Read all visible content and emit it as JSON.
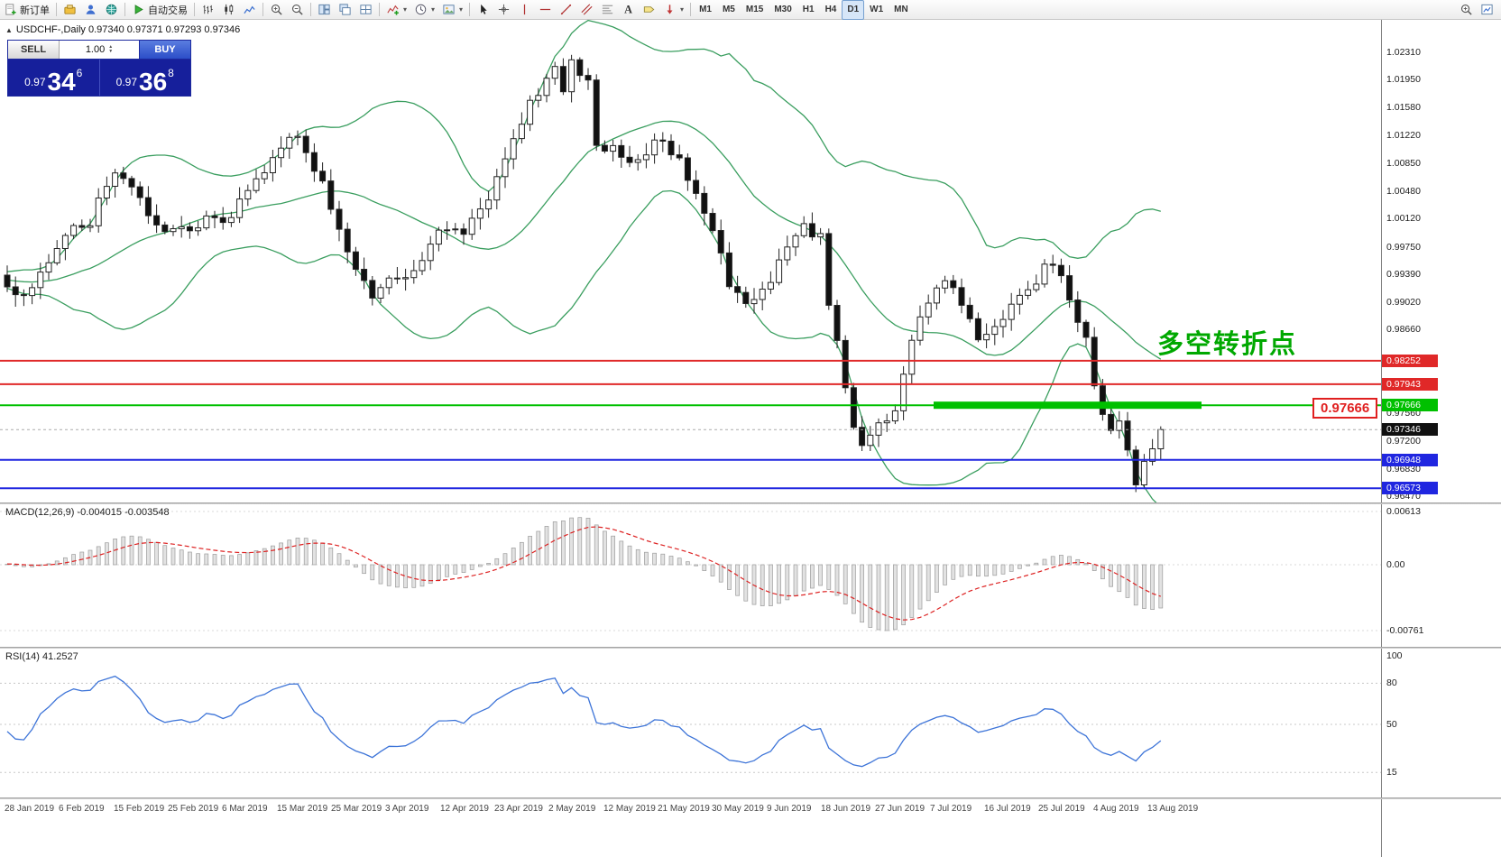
{
  "toolbar": {
    "groups": [
      {
        "items": [
          {
            "name": "new-order-button",
            "icon": "new-order-icon",
            "label": "新订单"
          }
        ]
      },
      {
        "items": [
          {
            "name": "symbols-button",
            "icon": "stack-icon"
          },
          {
            "name": "profile-button",
            "icon": "profile-icon"
          },
          {
            "name": "community-button",
            "icon": "globe-icon"
          }
        ]
      },
      {
        "items": [
          {
            "name": "auto-trading-button",
            "icon": "play-icon",
            "label": "自动交易"
          }
        ]
      },
      {
        "items": [
          {
            "name": "bar-chart-button",
            "icon": "bar-chart-icon"
          },
          {
            "name": "candlestick-chart-button",
            "icon": "candle-icon"
          },
          {
            "name": "line-chart-button",
            "icon": "line-chart-icon"
          }
        ]
      },
      {
        "items": [
          {
            "name": "zoom-in-button",
            "icon": "zoom-in-icon"
          },
          {
            "name": "zoom-out-button",
            "icon": "zoom-out-icon"
          }
        ]
      },
      {
        "items": [
          {
            "name": "tile-windows-button",
            "icon": "tile-windows-icon"
          },
          {
            "name": "cascade-windows-button",
            "icon": "cascade-windows-icon"
          },
          {
            "name": "arrange-windows-button",
            "icon": "grid-icon"
          }
        ]
      },
      {
        "items": [
          {
            "name": "indicators-button",
            "icon": "indicators-icon",
            "dropdown": true
          },
          {
            "name": "periods-button",
            "icon": "clock-icon",
            "dropdown": true
          },
          {
            "name": "templates-button",
            "icon": "template-icon",
            "dropdown": true
          }
        ]
      },
      {
        "items": [
          {
            "name": "cursor-button",
            "icon": "cursor-icon"
          },
          {
            "name": "crosshair-button",
            "icon": "crosshair-icon"
          },
          {
            "name": "vertical-line-button",
            "icon": "vline-icon"
          },
          {
            "name": "horizontal-line-button",
            "icon": "hline-icon"
          },
          {
            "name": "trendline-button",
            "icon": "trendline-icon"
          },
          {
            "name": "channel-button",
            "icon": "channel-icon"
          },
          {
            "name": "fibonacci-button",
            "icon": "fibo-icon"
          },
          {
            "name": "text-button",
            "icon": "text-icon"
          },
          {
            "name": "label-button",
            "icon": "label-icon"
          },
          {
            "name": "arrows-button",
            "icon": "arrow-icon",
            "dropdown": true
          }
        ]
      },
      {
        "items": [
          {
            "name": "timeframe-m1-button",
            "label": "M1",
            "tf": true
          },
          {
            "name": "timeframe-m5-button",
            "label": "M5",
            "tf": true
          },
          {
            "name": "timeframe-m15-button",
            "label": "M15",
            "tf": true
          },
          {
            "name": "timeframe-m30-button",
            "label": "M30",
            "tf": true
          },
          {
            "name": "timeframe-h1-button",
            "label": "H1",
            "tf": true
          },
          {
            "name": "timeframe-h4-button",
            "label": "H4",
            "tf": true
          },
          {
            "name": "timeframe-d1-button",
            "label": "D1",
            "tf": true,
            "active": true
          },
          {
            "name": "timeframe-w1-button",
            "label": "W1",
            "tf": true
          },
          {
            "name": "timeframe-mn-button",
            "label": "MN",
            "tf": true
          }
        ]
      }
    ],
    "right_items": [
      {
        "name": "search-button",
        "icon": "search-icon"
      },
      {
        "name": "new-chart-button",
        "icon": "new-chart-icon"
      }
    ]
  },
  "chart_header": {
    "symbol_line": "USDCHF-,Daily  0.97340 0.97371 0.97293 0.97346"
  },
  "trade_panel": {
    "sell_label": "SELL",
    "buy_label": "BUY",
    "volume": "1.00",
    "sell_price_main": "0.97",
    "sell_price_big": "34",
    "sell_price_sup": "6",
    "buy_price_main": "0.97",
    "buy_price_big": "36",
    "buy_price_sup": "8"
  },
  "annotation": {
    "text": "多空转折点",
    "color": "#00a800"
  },
  "price_tag": {
    "text": "0.97666"
  },
  "chart_data": {
    "type": "candlestick",
    "symbol": "USDCHF-",
    "timeframe": "Daily",
    "ohlc": {
      "open": 0.9734,
      "high": 0.97371,
      "low": 0.97293,
      "close": 0.97346
    },
    "current_price": 0.97346,
    "current_price_label": "0.97346",
    "price_range": {
      "top": 1.0231,
      "bottom": 0.9647
    },
    "y_axis_ticks": [
      "1.02310",
      "1.01950",
      "1.01580",
      "1.01220",
      "1.00850",
      "1.00480",
      "1.00120",
      "0.99750",
      "0.99390",
      "0.99020",
      "0.98660",
      "0.97560",
      "0.97200",
      "0.96830",
      "0.96470"
    ],
    "level_lines": [
      {
        "price": 0.98252,
        "label": "0.98252",
        "color": "#e02828"
      },
      {
        "price": 0.97943,
        "label": "0.97943",
        "color": "#e02828"
      },
      {
        "price": 0.97666,
        "label": "0.97666",
        "color": "#00c000",
        "highlight_segment": {
          "x_start_frac": 0.676,
          "x_end_frac": 0.87
        }
      },
      {
        "price": 0.96948,
        "label": "0.96948",
        "color": "#2026e0"
      },
      {
        "price": 0.96573,
        "label": "0.96573",
        "color": "#2026e0"
      }
    ],
    "x_axis_dates": [
      "28 Jan 2019",
      "6 Feb 2019",
      "15 Feb 2019",
      "25 Feb 2019",
      "6 Mar 2019",
      "15 Mar 2019",
      "25 Mar 2019",
      "3 Apr 2019",
      "12 Apr 2019",
      "23 Apr 2019",
      "2 May 2019",
      "12 May 2019",
      "21 May 2019",
      "30 May 2019",
      "9 Jun 2019",
      "18 Jun 2019",
      "27 Jun 2019",
      "7 Jul 2019",
      "16 Jul 2019",
      "25 Jul 2019",
      "4 Aug 2019",
      "13 Aug 2019"
    ],
    "candle_count": 140,
    "price_anchors": [
      [
        0,
        0.993
      ],
      [
        2,
        0.9908
      ],
      [
        5,
        0.996
      ],
      [
        8,
        1.0
      ],
      [
        10,
        1.001
      ],
      [
        13,
        1.0078
      ],
      [
        15,
        1.0052
      ],
      [
        18,
        1.0
      ],
      [
        21,
        0.9996
      ],
      [
        24,
        1.001
      ],
      [
        26,
        1.0004
      ],
      [
        29,
        1.0048
      ],
      [
        32,
        1.0095
      ],
      [
        34,
        1.0125
      ],
      [
        36,
        1.01
      ],
      [
        38,
        1.0058
      ],
      [
        40,
        0.9995
      ],
      [
        42,
        0.994
      ],
      [
        44,
        0.9912
      ],
      [
        46,
        0.9928
      ],
      [
        48,
        0.9935
      ],
      [
        50,
        0.9958
      ],
      [
        52,
        0.9998
      ],
      [
        55,
        0.9992
      ],
      [
        57,
        1.0022
      ],
      [
        59,
        1.006
      ],
      [
        61,
        1.011
      ],
      [
        63,
        1.016
      ],
      [
        65,
        1.0195
      ],
      [
        66,
        1.021
      ],
      [
        67,
        1.0185
      ],
      [
        68,
        1.0225
      ],
      [
        70,
        1.019
      ],
      [
        71,
        1.011
      ],
      [
        73,
        1.0105
      ],
      [
        75,
        1.0085
      ],
      [
        77,
        1.01
      ],
      [
        79,
        1.012
      ],
      [
        81,
        1.0085
      ],
      [
        83,
        1.004
      ],
      [
        85,
        0.9995
      ],
      [
        87,
        0.993
      ],
      [
        89,
        0.99
      ],
      [
        91,
        0.9915
      ],
      [
        93,
        0.995
      ],
      [
        95,
        0.9985
      ],
      [
        96,
        1.0005
      ],
      [
        98,
        0.9985
      ],
      [
        99,
        0.99
      ],
      [
        100,
        0.9855
      ],
      [
        101,
        0.979
      ],
      [
        102,
        0.9745
      ],
      [
        103,
        0.972
      ],
      [
        105,
        0.9745
      ],
      [
        107,
        0.9762
      ],
      [
        109,
        0.986
      ],
      [
        111,
        0.9905
      ],
      [
        113,
        0.993
      ],
      [
        115,
        0.99
      ],
      [
        117,
        0.9855
      ],
      [
        119,
        0.987
      ],
      [
        121,
        0.9905
      ],
      [
        123,
        0.992
      ],
      [
        125,
        0.9945
      ],
      [
        126,
        0.9958
      ],
      [
        128,
        0.9905
      ],
      [
        130,
        0.9855
      ],
      [
        131,
        0.98
      ],
      [
        132,
        0.976
      ],
      [
        133,
        0.973
      ],
      [
        134,
        0.9742
      ],
      [
        135,
        0.97
      ],
      [
        136,
        0.966
      ],
      [
        137,
        0.9692
      ],
      [
        138,
        0.9715
      ],
      [
        139,
        0.97346
      ]
    ],
    "indicators": {
      "bollinger": {
        "period": 20,
        "deviation": 2,
        "color": "#3a9e5f"
      },
      "macd": {
        "label": "MACD(12,26,9) -0.004015 -0.003548",
        "values": [
          -0.004015,
          -0.003548
        ],
        "axis_ticks": [
          "0.00613",
          "0.00",
          "-0.00761"
        ],
        "histogram_color": "#e2e2e2",
        "signal_color": "#dd2222"
      },
      "rsi": {
        "label": "RSI(14) 41.2527",
        "value": 41.2527,
        "axis_ticks": [
          "100",
          "80",
          "50",
          "15"
        ],
        "line_color": "#3d74d8"
      }
    },
    "style": {
      "bull_color": "#ffffff",
      "bear_color": "#111111",
      "outline_color": "#222222"
    }
  }
}
